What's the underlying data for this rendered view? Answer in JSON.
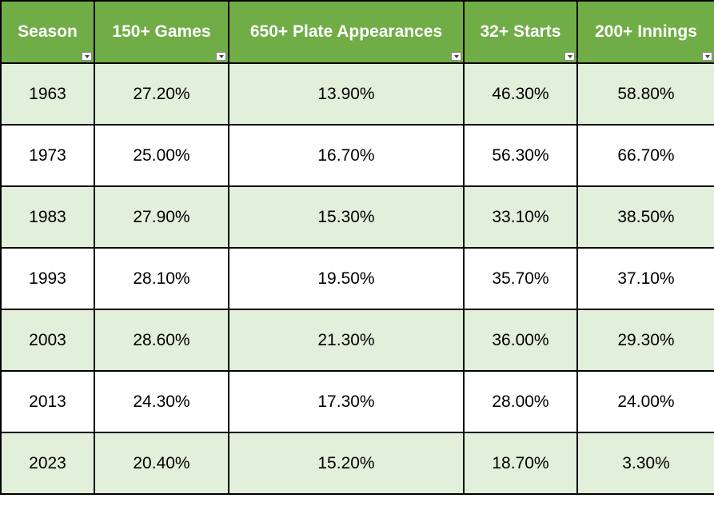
{
  "columns": [
    "Season",
    "150+ Games",
    "650+ Plate Appearances",
    "32+ Starts",
    "200+ Innings"
  ],
  "rows": [
    [
      "1963",
      "27.20%",
      "13.90%",
      "46.30%",
      "58.80%"
    ],
    [
      "1973",
      "25.00%",
      "16.70%",
      "56.30%",
      "66.70%"
    ],
    [
      "1983",
      "27.90%",
      "15.30%",
      "33.10%",
      "38.50%"
    ],
    [
      "1993",
      "28.10%",
      "19.50%",
      "35.70%",
      "37.10%"
    ],
    [
      "2003",
      "28.60%",
      "21.30%",
      "36.00%",
      "29.30%"
    ],
    [
      "2013",
      "24.30%",
      "17.30%",
      "28.00%",
      "24.00%"
    ],
    [
      "2023",
      "20.40%",
      "15.20%",
      "18.70%",
      "3.30%"
    ]
  ],
  "colors": {
    "header_bg": "#70ad47",
    "header_text": "#ffffff",
    "band_bg": "#e2efda",
    "border": "#000000"
  },
  "icons": {
    "header_filter": "filter-dropdown-icon"
  }
}
